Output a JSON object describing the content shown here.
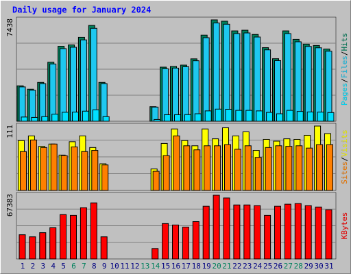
{
  "chart_data": [
    {
      "type": "bar",
      "title": "Daily usage for January 2024",
      "ylim": [
        0,
        7438
      ],
      "yticks": [
        7438
      ],
      "legend_separator": "/",
      "series": [
        {
          "name": "Hits",
          "color": "#00805c",
          "values": [
            2600,
            2350,
            2850,
            4330,
            5500,
            5600,
            6160,
            7030,
            2850,
            null,
            null,
            null,
            null,
            1070,
            3970,
            4020,
            4120,
            4580,
            6320,
            7438,
            7340,
            6630,
            6680,
            6370,
            5400,
            4590,
            6630,
            6010,
            5660,
            5560,
            5300
          ]
        },
        {
          "name": "Files",
          "color": "#1ec8f0",
          "values": [
            2520,
            2280,
            2760,
            4200,
            5330,
            5430,
            5970,
            6820,
            2760,
            null,
            null,
            null,
            null,
            1040,
            3850,
            3900,
            4000,
            4440,
            6130,
            7210,
            7120,
            6430,
            6480,
            6180,
            5240,
            4450,
            6430,
            5830,
            5490,
            5390,
            5140
          ]
        },
        {
          "name": "Pages",
          "color": "#00e0ff",
          "values": [
            310,
            280,
            340,
            520,
            660,
            670,
            740,
            840,
            340,
            null,
            null,
            null,
            null,
            130,
            480,
            480,
            490,
            550,
            760,
            890,
            880,
            800,
            800,
            760,
            650,
            550,
            800,
            720,
            680,
            670,
            640
          ]
        }
      ]
    },
    {
      "type": "bar",
      "ylim": [
        0,
        111
      ],
      "yticks": [
        111
      ],
      "legend_separator": "/",
      "series": [
        {
          "name": "Visits",
          "color": "#ffff00",
          "values": [
            86,
            94,
            76,
            80,
            61,
            84,
            94,
            74,
            46,
            null,
            null,
            null,
            null,
            37,
            81,
            106,
            86,
            77,
            106,
            89,
            108,
            94,
            101,
            69,
            88,
            85,
            89,
            88,
            95,
            111,
            98
          ]
        },
        {
          "name": "Sites",
          "color": "#ff8000",
          "values": [
            67,
            87,
            74,
            80,
            60,
            75,
            67,
            69,
            44,
            null,
            null,
            null,
            null,
            33,
            60,
            94,
            77,
            70,
            77,
            77,
            79,
            71,
            77,
            57,
            74,
            77,
            76,
            77,
            73,
            79,
            79
          ]
        }
      ]
    },
    {
      "type": "bar",
      "ylim": [
        0,
        67383
      ],
      "yticks": [
        67383
      ],
      "categories": [
        "1",
        "2",
        "3",
        "4",
        "5",
        "6",
        "7",
        "8",
        "9",
        "10",
        "11",
        "12",
        "13",
        "14",
        "15",
        "16",
        "17",
        "18",
        "19",
        "20",
        "21",
        "22",
        "23",
        "24",
        "25",
        "26",
        "27",
        "28",
        "29",
        "30",
        "31"
      ],
      "highlight_categories": [
        "6",
        "7",
        "13",
        "14",
        "20",
        "21",
        "27",
        "28"
      ],
      "highlight_color": "#00805c",
      "category_color": "#000080",
      "series": [
        {
          "name": "KBytes",
          "color": "#ff0000",
          "values": [
            25600,
            23400,
            27800,
            33000,
            46900,
            46100,
            54200,
            59300,
            23400,
            null,
            null,
            null,
            null,
            11000,
            37400,
            35900,
            33700,
            39500,
            55700,
            67383,
            64500,
            57100,
            57100,
            56400,
            46100,
            55700,
            57900,
            58600,
            56400,
            54900,
            52000
          ]
        }
      ]
    }
  ]
}
